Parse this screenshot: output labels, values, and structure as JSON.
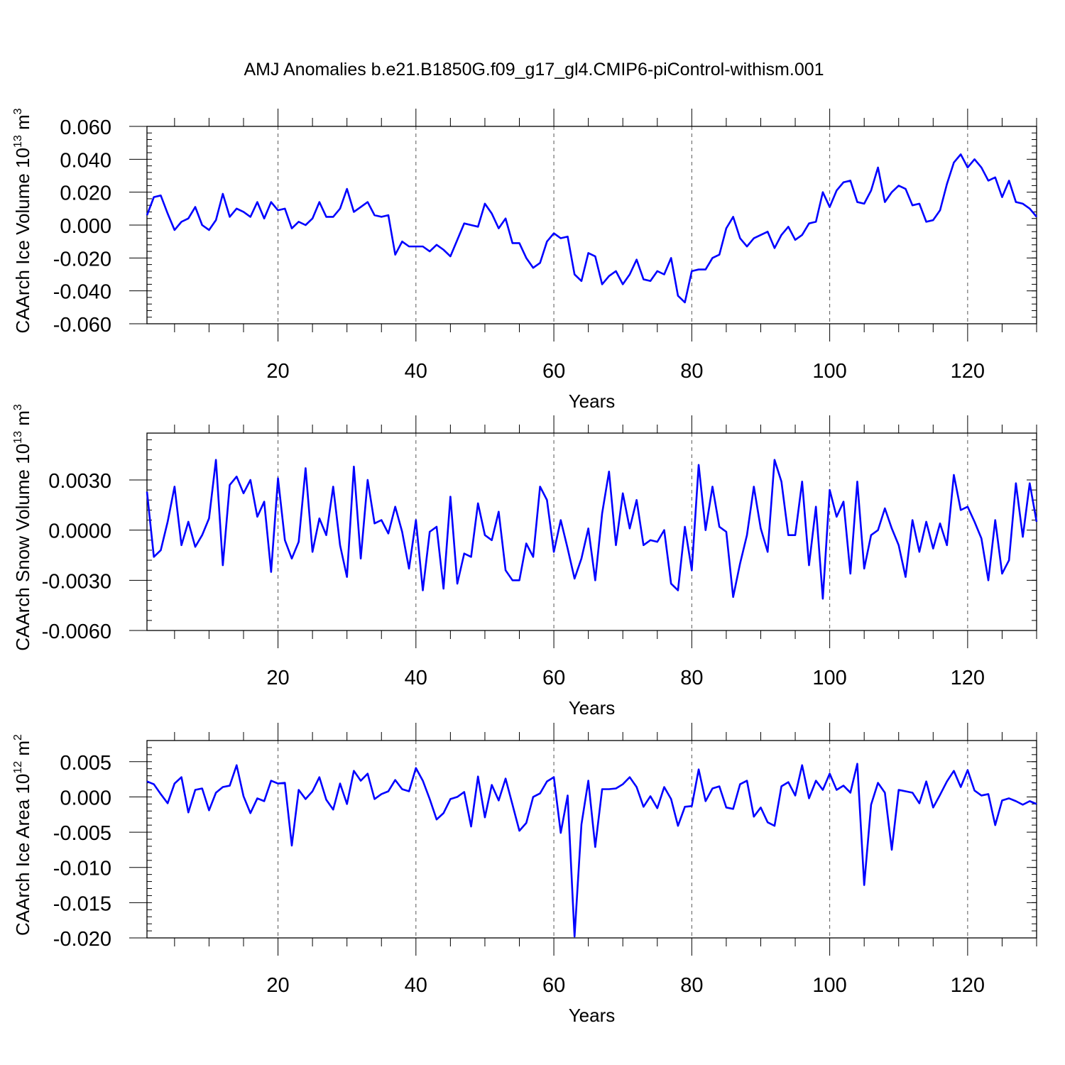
{
  "title": "AMJ Anomalies b.e21.B1850G.f09_g17_gl4.CMIP6-piControl-withism.001",
  "colors": {
    "series": "#0000ff",
    "frame": "#000000",
    "grid": "#555555"
  },
  "chart_data": [
    {
      "type": "line",
      "ylabel_text": "CAArch Ice Volume 10",
      "ylabel_exp": "13",
      "ylabel_unit": " m",
      "ylabel_unit_exp": "3",
      "xlabel": "Years",
      "xlim": [
        1,
        130
      ],
      "ylim": [
        -0.06,
        0.06
      ],
      "yticks": [
        -0.06,
        -0.04,
        -0.02,
        0.0,
        0.02,
        0.04,
        0.06
      ],
      "ytick_labels": [
        "-0.060",
        "-0.040",
        "-0.020",
        "0.000",
        "0.020",
        "0.040",
        "0.060"
      ],
      "yminor_step": 0.004,
      "xticks": [
        20,
        40,
        60,
        80,
        100,
        120
      ],
      "xtick_labels": [
        "20",
        "40",
        "60",
        "80",
        "100",
        "120"
      ],
      "grid": "x-dashed",
      "values": [
        0.006,
        0.017,
        0.018,
        0.007,
        -0.003,
        0.002,
        0.004,
        0.011,
        0.0,
        -0.003,
        0.003,
        0.019,
        0.005,
        0.01,
        0.008,
        0.005,
        0.014,
        0.004,
        0.014,
        0.009,
        0.01,
        -0.002,
        0.002,
        0.0,
        0.004,
        0.014,
        0.005,
        0.005,
        0.01,
        0.022,
        0.008,
        0.011,
        0.014,
        0.006,
        0.005,
        0.006,
        -0.018,
        -0.01,
        -0.013,
        -0.013,
        -0.013,
        -0.016,
        -0.012,
        -0.015,
        -0.019,
        -0.009,
        0.001,
        0.0,
        -0.001,
        0.013,
        0.007,
        -0.002,
        0.004,
        -0.011,
        -0.011,
        -0.02,
        -0.026,
        -0.023,
        -0.01,
        -0.005,
        -0.008,
        -0.007,
        -0.03,
        -0.034,
        -0.017,
        -0.019,
        -0.036,
        -0.031,
        -0.028,
        -0.036,
        -0.03,
        -0.021,
        -0.033,
        -0.034,
        -0.028,
        -0.03,
        -0.02,
        -0.043,
        -0.047,
        -0.028,
        -0.027,
        -0.027,
        -0.02,
        -0.018,
        -0.002,
        0.005,
        -0.008,
        -0.013,
        -0.008,
        -0.006,
        -0.004,
        -0.014,
        -0.006,
        -0.001,
        -0.009,
        -0.006,
        0.001,
        0.002,
        0.02,
        0.011,
        0.021,
        0.026,
        0.027,
        0.014,
        0.013,
        0.021,
        0.035,
        0.014,
        0.02,
        0.024,
        0.022,
        0.012,
        0.013,
        0.002,
        0.003,
        0.009,
        0.025,
        0.038,
        0.043,
        0.035,
        0.04,
        0.035,
        0.027,
        0.029,
        0.017,
        0.027,
        0.014,
        0.013,
        0.01,
        0.005
      ]
    },
    {
      "type": "line",
      "ylabel_text": "CAArch Snow Volume 10",
      "ylabel_exp": "13",
      "ylabel_unit": " m",
      "ylabel_unit_exp": "3",
      "xlabel": "Years",
      "xlim": [
        1,
        130
      ],
      "ylim": [
        -0.006,
        0.0058
      ],
      "yticks": [
        -0.006,
        -0.003,
        0.0,
        0.003
      ],
      "ytick_labels": [
        "-0.0060",
        "-0.0030",
        "0.0000",
        "0.0030"
      ],
      "yminor_step": 0.0006,
      "xticks": [
        20,
        40,
        60,
        80,
        100,
        120
      ],
      "xtick_labels": [
        "20",
        "40",
        "60",
        "80",
        "100",
        "120"
      ],
      "grid": "x-dashed",
      "values": [
        0.0023,
        -0.0016,
        -0.0012,
        0.0005,
        0.0026,
        -0.0009,
        0.0005,
        -0.001,
        -0.0003,
        0.0007,
        0.0042,
        -0.0021,
        0.0027,
        0.0032,
        0.0022,
        0.003,
        0.0008,
        0.0017,
        -0.0025,
        0.0031,
        -0.0006,
        -0.0017,
        -0.0007,
        0.0037,
        -0.0013,
        0.0007,
        -0.0003,
        0.0026,
        -0.0009,
        -0.0028,
        0.0038,
        -0.0017,
        0.003,
        0.0004,
        0.0006,
        -0.0002,
        0.0014,
        -0.0001,
        -0.0023,
        0.0006,
        -0.0036,
        -0.0001,
        0.0002,
        -0.0035,
        0.002,
        -0.0032,
        -0.0014,
        -0.0016,
        0.0016,
        -0.0003,
        -0.0006,
        0.0011,
        -0.0024,
        -0.003,
        -0.003,
        -0.0008,
        -0.0016,
        0.0026,
        0.0018,
        -0.0013,
        0.0006,
        -0.0011,
        -0.0029,
        -0.0017,
        0.0001,
        -0.003,
        0.001,
        0.0035,
        -0.0009,
        0.0022,
        0.0001,
        0.0018,
        -0.0009,
        -0.0006,
        -0.0007,
        0.0,
        -0.0032,
        -0.0036,
        0.0002,
        -0.0024,
        0.0039,
        0.0,
        0.0026,
        0.0002,
        -0.0001,
        -0.004,
        -0.002,
        -0.0003,
        0.0026,
        0.0001,
        -0.0013,
        0.0042,
        0.0029,
        -0.0003,
        -0.0003,
        0.0029,
        -0.0021,
        0.0014,
        -0.0041,
        0.0024,
        0.0008,
        0.0017,
        -0.0026,
        0.0029,
        -0.0023,
        -0.0003,
        0.0,
        0.0013,
        0.0001,
        -0.0009,
        -0.0028,
        0.0006,
        -0.0013,
        0.0005,
        -0.0011,
        0.0004,
        -0.0009,
        0.0033,
        0.0012,
        0.0014,
        0.0005,
        -0.0005,
        -0.003,
        0.0006,
        -0.0026,
        -0.0018,
        0.0028,
        -0.0004,
        0.0028,
        0.0005
      ]
    },
    {
      "type": "line",
      "ylabel_text": "CAArch Ice Area 10",
      "ylabel_exp": "12",
      "ylabel_unit": " m",
      "ylabel_unit_exp": "2",
      "xlabel": "Years",
      "xlim": [
        1,
        130
      ],
      "ylim": [
        -0.02,
        0.008
      ],
      "yticks": [
        -0.02,
        -0.015,
        -0.01,
        -0.005,
        0.0,
        0.005
      ],
      "ytick_labels": [
        "-0.020",
        "-0.015",
        "-0.010",
        "-0.005",
        "0.000",
        "0.005"
      ],
      "yminor_step": 0.001,
      "xticks": [
        20,
        40,
        60,
        80,
        100,
        120
      ],
      "xtick_labels": [
        "20",
        "40",
        "60",
        "80",
        "100",
        "120"
      ],
      "grid": "x-dashed",
      "values": [
        0.0022,
        0.0018,
        0.0004,
        -0.0009,
        0.0019,
        0.0028,
        -0.0022,
        0.001,
        0.0012,
        -0.0019,
        0.0006,
        0.0014,
        0.0016,
        0.0045,
        0.0001,
        -0.0023,
        -0.0002,
        -0.0006,
        0.0023,
        0.0019,
        0.002,
        -0.0069,
        0.001,
        -0.0003,
        0.0008,
        0.0028,
        -0.0004,
        -0.0018,
        0.0019,
        -0.001,
        0.0037,
        0.0023,
        0.0033,
        -0.0003,
        0.0004,
        0.0008,
        0.0024,
        0.0011,
        0.0008,
        0.0041,
        0.0023,
        -0.0003,
        -0.0032,
        -0.0023,
        -0.0003,
        0.0,
        0.0007,
        -0.0042,
        0.0029,
        -0.0029,
        0.0017,
        -0.0005,
        0.0026,
        -0.0011,
        -0.0048,
        -0.0037,
        0.0,
        0.0005,
        0.0022,
        0.0028,
        -0.0051,
        0.0002,
        -0.0198,
        -0.0039,
        0.0023,
        -0.0071,
        0.0011,
        0.0011,
        0.0012,
        0.0018,
        0.0028,
        0.0014,
        -0.0014,
        0.0001,
        -0.0016,
        0.0014,
        -0.0003,
        -0.0041,
        -0.0014,
        -0.0013,
        0.0039,
        -0.0006,
        0.0012,
        0.0015,
        -0.0015,
        -0.0017,
        0.0018,
        0.0023,
        -0.0028,
        -0.0015,
        -0.0036,
        -0.0041,
        0.0015,
        0.0021,
        0.0002,
        0.0045,
        -0.0002,
        0.0023,
        0.001,
        0.0033,
        0.001,
        0.0016,
        0.0006,
        0.0047,
        -0.0125,
        -0.0011,
        0.002,
        0.0006,
        -0.0075,
        0.001,
        0.0008,
        0.0006,
        -0.0009,
        0.0022,
        -0.0015,
        0.0003,
        0.0022,
        0.0037,
        0.0014,
        0.0038,
        0.0009,
        0.0002,
        0.0004,
        -0.004,
        -0.0005,
        -0.0002,
        -0.0006,
        -0.0011,
        -0.0006,
        -0.001
      ]
    }
  ]
}
